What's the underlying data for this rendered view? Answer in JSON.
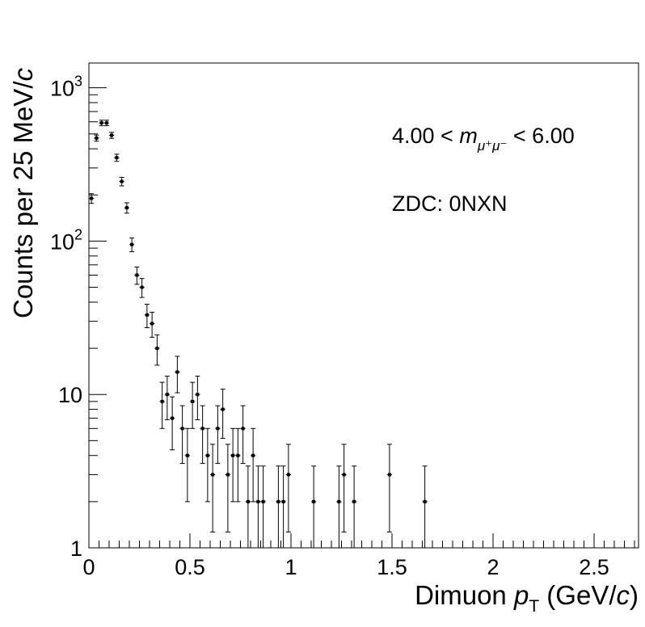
{
  "chart_data": {
    "type": "scatter",
    "title": "",
    "xlabel": "Dimuon p_T (GeV/c)",
    "ylabel": "Counts per  25 MeV/c",
    "xlim": [
      0,
      2.72
    ],
    "ylim": [
      1,
      1450
    ],
    "y_scale": "log",
    "grid": false,
    "x_ticks": [
      "0",
      "0.5",
      "1",
      "1.5",
      "2",
      "2.5"
    ],
    "x_tick_values": [
      0,
      0.5,
      1,
      1.5,
      2,
      2.5
    ],
    "y_ticks": [
      "1",
      "10",
      "10²",
      "10³"
    ],
    "y_tick_values": [
      1,
      10,
      100,
      1000
    ],
    "annotations": [
      "4.00 < m_{μ⁺μ⁻} < 6.00",
      "ZDC: 0NXN"
    ],
    "series": [
      {
        "bin_width": 0.025,
        "x": [
          0.0125,
          0.0375,
          0.0625,
          0.0875,
          0.1125,
          0.1375,
          0.1625,
          0.1875,
          0.2125,
          0.2375,
          0.2625,
          0.2875,
          0.3125,
          0.3375,
          0.3625,
          0.3875,
          0.4125,
          0.4375,
          0.4625,
          0.4875,
          0.5125,
          0.5375,
          0.5625,
          0.5875,
          0.6125,
          0.6375,
          0.6625,
          0.6875,
          0.7125,
          0.7375,
          0.7625,
          0.7875,
          0.8125,
          0.8375,
          0.8625,
          0.9375,
          0.9625,
          0.9875,
          1.1125,
          1.2375,
          1.2625,
          1.3125,
          1.4875,
          1.6625
        ],
        "y": [
          190,
          470,
          590,
          590,
          490,
          350,
          245,
          165,
          95,
          60,
          50,
          33,
          29,
          20,
          9,
          10,
          7,
          14,
          6,
          4,
          9,
          10,
          6,
          4,
          3,
          6,
          8,
          3,
          4,
          4,
          6,
          2,
          4,
          2,
          2,
          2,
          2,
          3,
          2,
          2,
          3,
          2,
          3,
          2
        ]
      }
    ]
  }
}
